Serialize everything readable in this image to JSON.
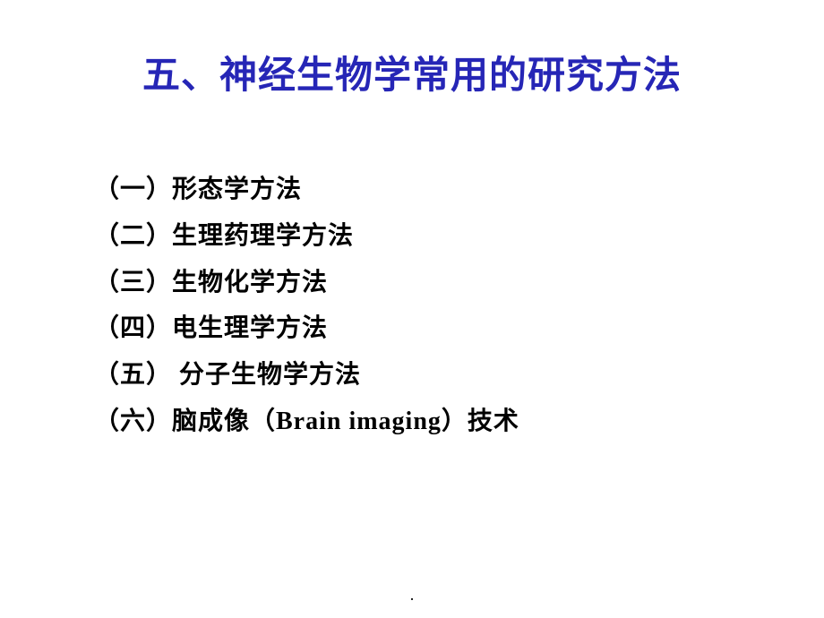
{
  "slide": {
    "title": "五、神经生物学常用的研究方法",
    "title_color": "#2626b6",
    "title_fontsize": 42,
    "background_color": "#ffffff",
    "items": [
      "（一）形态学方法",
      "（二）生理药理学方法",
      "（三）生物化学方法",
      "（四）电生理学方法",
      "（五） 分子生物学方法",
      "（六）脑成像（Brain imaging）技术"
    ],
    "item_color": "#000000",
    "item_fontsize": 28,
    "footer": "."
  }
}
